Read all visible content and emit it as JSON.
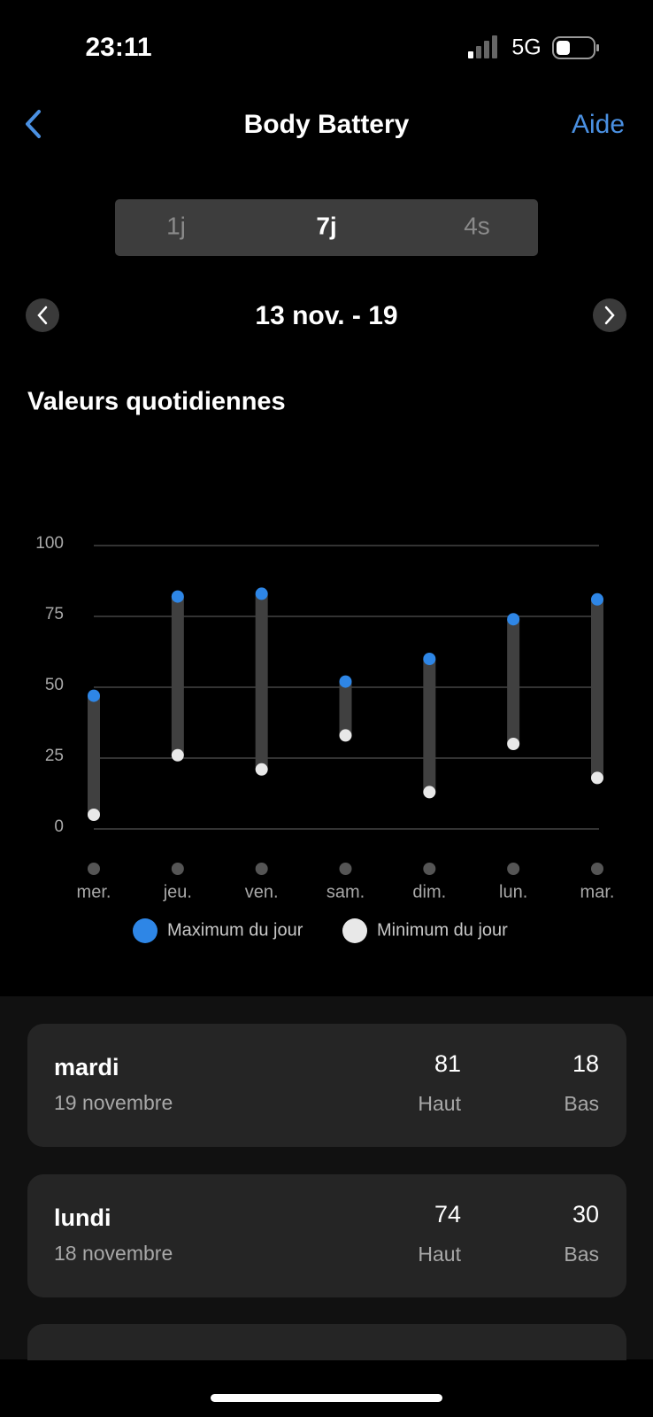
{
  "status": {
    "time": "23:11",
    "network": "5G"
  },
  "nav": {
    "title": "Body Battery",
    "help": "Aide"
  },
  "tabs": [
    "1j",
    "7j",
    "4s"
  ],
  "range": "13 nov. - 19",
  "section": "Valeurs quotidiennes",
  "chart_data": {
    "type": "range",
    "categories": [
      "mer.",
      "jeu.",
      "ven.",
      "sam.",
      "dim.",
      "lun.",
      "mar."
    ],
    "series": [
      {
        "name": "Maximum du jour",
        "color": "#2e86e6",
        "values": [
          47,
          82,
          83,
          52,
          60,
          74,
          81
        ]
      },
      {
        "name": "Minimum du jour",
        "color": "#e8e8e8",
        "values": [
          5,
          26,
          21,
          33,
          13,
          30,
          18
        ]
      }
    ],
    "ylim": [
      0,
      100
    ],
    "yticks": [
      0,
      25,
      50,
      75,
      100
    ],
    "grid": true
  },
  "cards": [
    {
      "day": "mardi",
      "date": "19 novembre",
      "high": "81",
      "high_label": "Haut",
      "low": "18",
      "low_label": "Bas"
    },
    {
      "day": "lundi",
      "date": "18 novembre",
      "high": "74",
      "high_label": "Haut",
      "low": "30",
      "low_label": "Bas"
    }
  ]
}
